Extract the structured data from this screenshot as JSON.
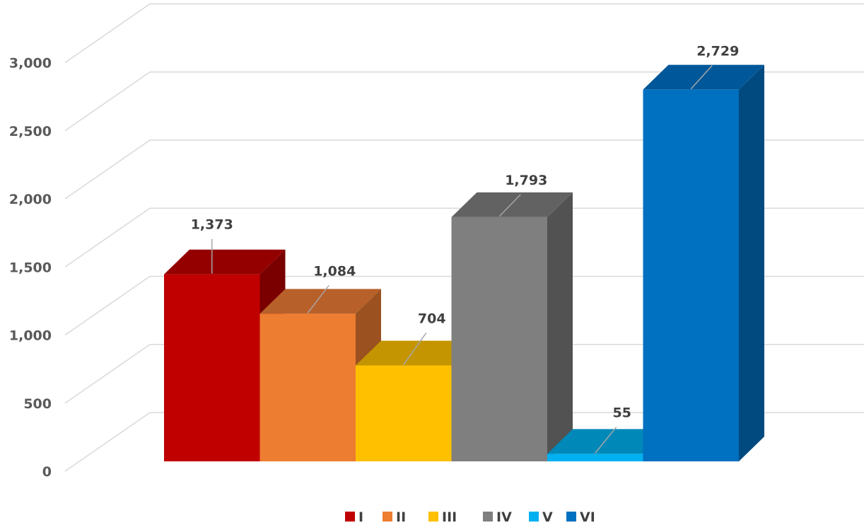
{
  "chart_data": {
    "type": "bar",
    "style": "3d-column",
    "categories": [
      "I",
      "II",
      "III",
      "IV",
      "V",
      "VI"
    ],
    "values": [
      1373,
      1084,
      704,
      1793,
      55,
      2729
    ],
    "data_labels": [
      "1,373",
      "1,084",
      "704",
      "1,793",
      "55",
      "2,729"
    ],
    "ylim": [
      0,
      3500
    ],
    "y_ticks": [
      0,
      500,
      1000,
      1500,
      2000,
      2500,
      3000
    ],
    "y_tick_labels": [
      "0",
      "500",
      "1,000",
      "1,500",
      "2,000",
      "2,500",
      "3,000"
    ],
    "grid": true,
    "legend_position": "bottom",
    "legend": [
      "I",
      "II",
      "III",
      "IV",
      "V",
      "VI"
    ],
    "colors": [
      "#C00000",
      "#ED7D31",
      "#FFC000",
      "#7F7F7F",
      "#00B0F0",
      "#0070C0"
    ],
    "top_colors": [
      "#940000",
      "#B8602A",
      "#C49500",
      "#626262",
      "#0088B8",
      "#00579A"
    ],
    "side_colors": [
      "#7A0000",
      "#9B5120",
      "#A07A00",
      "#525252",
      "#00749E",
      "#004A80"
    ]
  }
}
